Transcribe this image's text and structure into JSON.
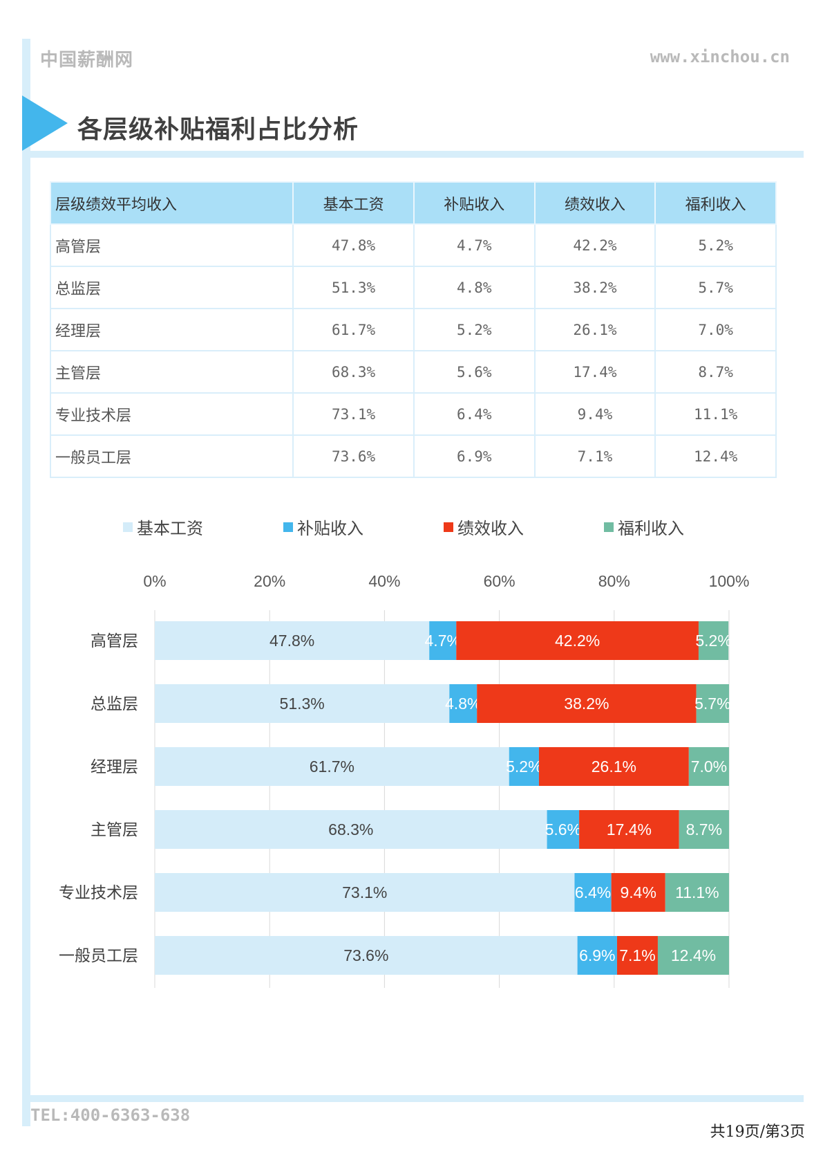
{
  "header": {
    "brand": "中国薪酬网",
    "url": "www.xinchou.cn"
  },
  "title": "各层级补贴福利占比分析",
  "table": {
    "headers": [
      "层级绩效平均收入",
      "基本工资",
      "补贴收入",
      "绩效收入",
      "福利收入"
    ],
    "rows": [
      [
        "高管层",
        "47.8%",
        "4.7%",
        "42.2%",
        "5.2%"
      ],
      [
        "总监层",
        "51.3%",
        "4.8%",
        "38.2%",
        "5.7%"
      ],
      [
        "经理层",
        "61.7%",
        "5.2%",
        "26.1%",
        "7.0%"
      ],
      [
        "主管层",
        "68.3%",
        "5.6%",
        "17.4%",
        "8.7%"
      ],
      [
        "专业技术层",
        "73.1%",
        "6.4%",
        "9.4%",
        "11.1%"
      ],
      [
        "一般员工层",
        "73.6%",
        "6.9%",
        "7.1%",
        "12.4%"
      ]
    ]
  },
  "chart_data": {
    "type": "bar",
    "orientation": "horizontal",
    "stacked": true,
    "categories": [
      "高管层",
      "总监层",
      "经理层",
      "主管层",
      "专业技术层",
      "一般员工层"
    ],
    "series": [
      {
        "name": "基本工资",
        "color": "#d4ecf9",
        "label_color": "#444444",
        "values": [
          47.8,
          51.3,
          61.7,
          68.3,
          73.1,
          73.6
        ]
      },
      {
        "name": "补贴收入",
        "color": "#43b6ec",
        "label_color": "#ffffff",
        "values": [
          4.7,
          4.8,
          5.2,
          5.6,
          6.4,
          6.9
        ]
      },
      {
        "name": "绩效收入",
        "color": "#ee3919",
        "label_color": "#ffffff",
        "values": [
          42.2,
          38.2,
          26.1,
          17.4,
          9.4,
          7.1
        ]
      },
      {
        "name": "福利收入",
        "color": "#71bca2",
        "label_color": "#ffffff",
        "values": [
          5.2,
          5.7,
          7.0,
          8.7,
          11.1,
          12.4
        ]
      }
    ],
    "xticks": [
      "0%",
      "20%",
      "40%",
      "60%",
      "80%",
      "100%"
    ],
    "xlim": [
      0,
      100
    ],
    "legend": "top",
    "grid": true
  },
  "footer": {
    "tel": "TEL:400-6363-638",
    "page": "共19页/第3页"
  }
}
